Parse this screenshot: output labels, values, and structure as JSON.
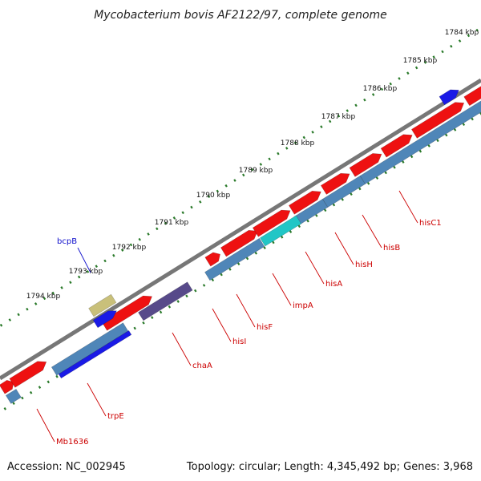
{
  "header": {
    "title": "Mycobacterium bovis AF2122/97, complete genome"
  },
  "footer": {
    "accession": "Accession: NC_002945",
    "summary": "Topology: circular; Length: 4,345,492 bp; Genes: 3,968"
  },
  "colors": {
    "backbone": "#777777",
    "tick": "#2a7a2a",
    "cds_forward": "#ee1111",
    "cds_reverse": "#4f86b8",
    "rrna": "#21c6c6",
    "trna": "#574a8a",
    "misc_a": "#1a1ae6",
    "misc_b": "#c9c07a",
    "label_red": "#cc0000",
    "label_blue": "#1111cc"
  },
  "scale_ticks": [
    "1784 kbp",
    "1785 kbp",
    "1786 kbp",
    "1787 kbp",
    "1788 kbp",
    "1789 kbp",
    "1790 kbp",
    "1791 kbp",
    "1792 kbp",
    "1793 kbp",
    "1794 kbp"
  ],
  "gene_labels": [
    {
      "name": "bcpB",
      "color_key": "label_blue"
    },
    {
      "name": "hisC1",
      "color_key": "label_red"
    },
    {
      "name": "hisB",
      "color_key": "label_red"
    },
    {
      "name": "hisH",
      "color_key": "label_red"
    },
    {
      "name": "hisA",
      "color_key": "label_red"
    },
    {
      "name": "impA",
      "color_key": "label_red"
    },
    {
      "name": "hisF",
      "color_key": "label_red"
    },
    {
      "name": "hisI",
      "color_key": "label_red"
    },
    {
      "name": "chaA",
      "color_key": "label_red"
    },
    {
      "name": "trpE",
      "color_key": "label_red"
    },
    {
      "name": "Mb1636",
      "color_key": "label_red"
    }
  ]
}
